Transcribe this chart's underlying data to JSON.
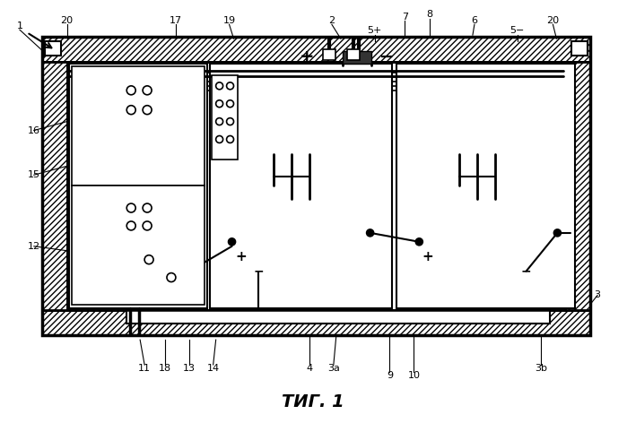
{
  "fig_label": "ΤИГ. 1",
  "background": "#ffffff",
  "figsize": [
    6.99,
    4.72
  ],
  "dpi": 100
}
